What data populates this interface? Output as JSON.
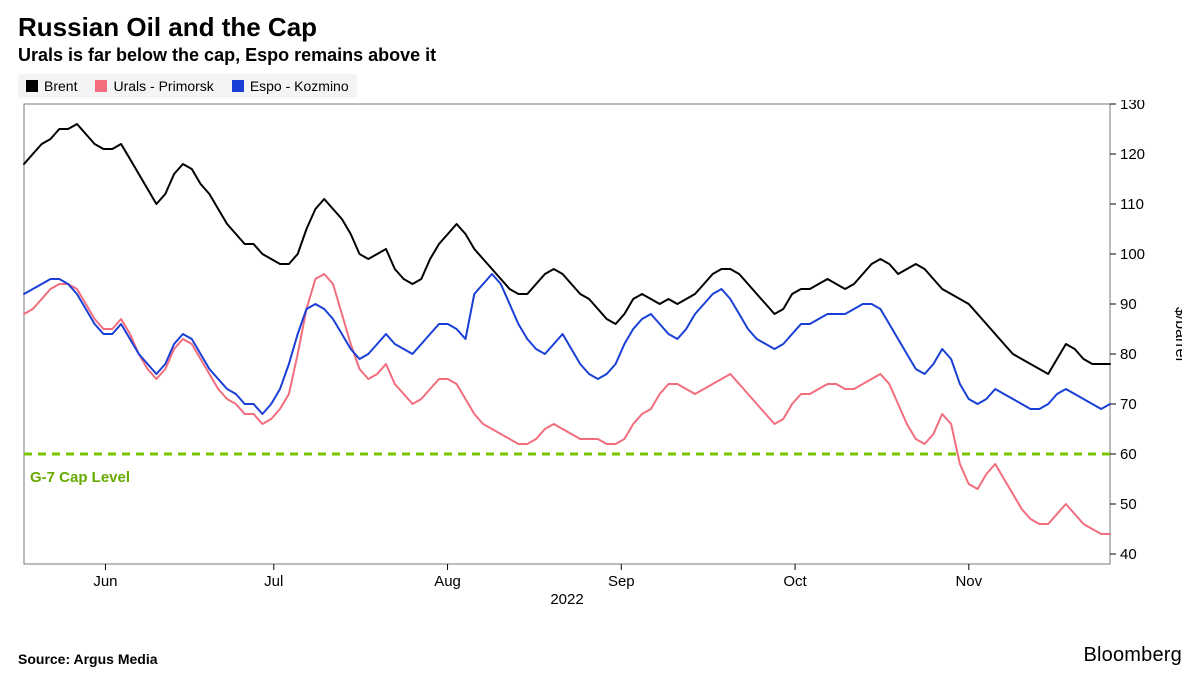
{
  "title": "Russian Oil and the Cap",
  "subtitle": "Urals is far below the cap, Espo remains above it",
  "source_label": "Source: Argus Media",
  "brand": "Bloomberg",
  "axis": {
    "y_label": "$/barrel",
    "x_year": "2022",
    "ylim": [
      38,
      130
    ],
    "yticks": [
      40,
      50,
      60,
      70,
      80,
      90,
      100,
      110,
      120,
      130
    ],
    "x_months": [
      "Jun",
      "Jul",
      "Aug",
      "Sep",
      "Oct",
      "Nov"
    ],
    "x_month_positions": [
      0.075,
      0.23,
      0.39,
      0.55,
      0.71,
      0.87
    ]
  },
  "reference_line": {
    "value": 60,
    "label": "G-7 Cap Level",
    "color": "#7bc400",
    "dash": [
      8,
      6
    ],
    "width": 3
  },
  "legend_bg": "#f4f4f4",
  "colors": {
    "brent": "#000000",
    "urals": "#f26d7d",
    "espo": "#1a3fd6",
    "grid_border": "#7a7a7a",
    "tick": "#000000",
    "bg": "#ffffff"
  },
  "line_width": 2,
  "series": [
    {
      "key": "brent",
      "name": "Brent",
      "color": "#000000",
      "values": [
        118,
        120,
        122,
        123,
        125,
        125,
        126,
        124,
        122,
        121,
        121,
        122,
        119,
        116,
        113,
        110,
        112,
        116,
        118,
        117,
        114,
        112,
        109,
        106,
        104,
        102,
        102,
        100,
        99,
        98,
        98,
        100,
        105,
        109,
        111,
        109,
        107,
        104,
        100,
        99,
        100,
        101,
        97,
        95,
        94,
        95,
        99,
        102,
        104,
        106,
        104,
        101,
        99,
        97,
        95,
        93,
        92,
        92,
        94,
        96,
        97,
        96,
        94,
        92,
        91,
        89,
        87,
        86,
        88,
        91,
        92,
        91,
        90,
        91,
        90,
        91,
        92,
        94,
        96,
        97,
        97,
        96,
        94,
        92,
        90,
        88,
        89,
        92,
        93,
        93,
        94,
        95,
        94,
        93,
        94,
        96,
        98,
        99,
        98,
        96,
        97,
        98,
        97,
        95,
        93,
        92,
        91,
        90,
        88,
        86,
        84,
        82,
        80,
        79,
        78,
        77,
        76,
        79,
        82,
        81,
        79,
        78,
        78,
        78
      ]
    },
    {
      "key": "urals",
      "name": "Urals - Primorsk",
      "color": "#f26d7d",
      "values": [
        88,
        89,
        91,
        93,
        94,
        94,
        93,
        90,
        87,
        85,
        85,
        87,
        84,
        80,
        77,
        75,
        77,
        81,
        83,
        82,
        79,
        76,
        73,
        71,
        70,
        68,
        68,
        66,
        67,
        69,
        72,
        80,
        89,
        95,
        96,
        94,
        88,
        82,
        77,
        75,
        76,
        78,
        74,
        72,
        70,
        71,
        73,
        75,
        75,
        74,
        71,
        68,
        66,
        65,
        64,
        63,
        62,
        62,
        63,
        65,
        66,
        65,
        64,
        63,
        63,
        63,
        62,
        62,
        63,
        66,
        68,
        69,
        72,
        74,
        74,
        73,
        72,
        73,
        74,
        75,
        76,
        74,
        72,
        70,
        68,
        66,
        67,
        70,
        72,
        72,
        73,
        74,
        74,
        73,
        73,
        74,
        75,
        76,
        74,
        70,
        66,
        63,
        62,
        64,
        68,
        66,
        58,
        54,
        53,
        56,
        58,
        55,
        52,
        49,
        47,
        46,
        46,
        48,
        50,
        48,
        46,
        45,
        44,
        44
      ]
    },
    {
      "key": "espo",
      "name": "Espo - Kozmino",
      "color": "#1a3fd6",
      "values": [
        92,
        93,
        94,
        95,
        95,
        94,
        92,
        89,
        86,
        84,
        84,
        86,
        83,
        80,
        78,
        76,
        78,
        82,
        84,
        83,
        80,
        77,
        75,
        73,
        72,
        70,
        70,
        68,
        70,
        73,
        78,
        84,
        89,
        90,
        89,
        87,
        84,
        81,
        79,
        80,
        82,
        84,
        82,
        81,
        80,
        82,
        84,
        86,
        86,
        85,
        83,
        92,
        94,
        96,
        94,
        90,
        86,
        83,
        81,
        80,
        82,
        84,
        81,
        78,
        76,
        75,
        76,
        78,
        82,
        85,
        87,
        88,
        86,
        84,
        83,
        85,
        88,
        90,
        92,
        93,
        91,
        88,
        85,
        83,
        82,
        81,
        82,
        84,
        86,
        86,
        87,
        88,
        88,
        88,
        89,
        90,
        90,
        89,
        86,
        83,
        80,
        77,
        76,
        78,
        81,
        79,
        74,
        71,
        70,
        71,
        73,
        72,
        71,
        70,
        69,
        69,
        70,
        72,
        73,
        72,
        71,
        70,
        69,
        70
      ]
    }
  ]
}
